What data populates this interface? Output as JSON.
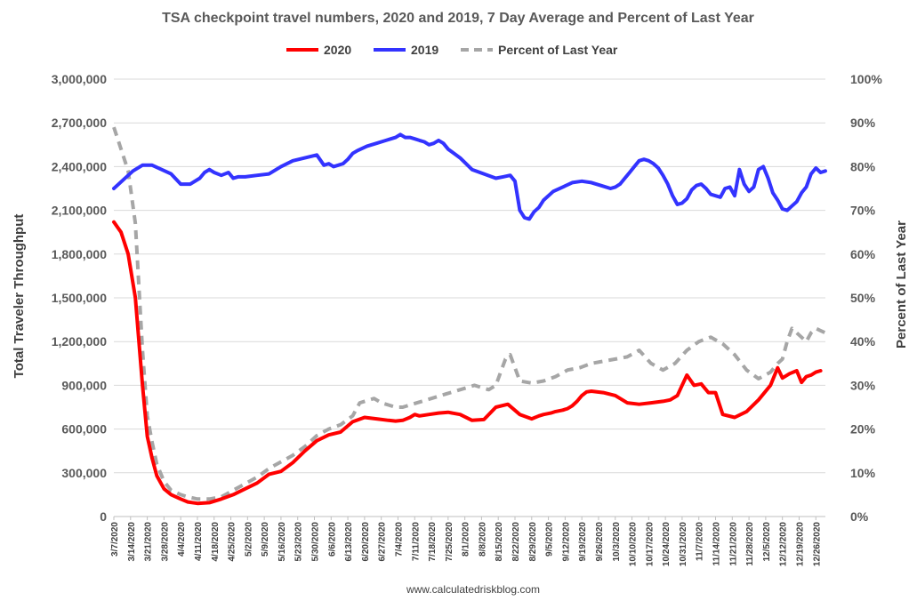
{
  "chart_data": {
    "type": "line",
    "title": "TSA checkpoint travel numbers, 2020 and 2019, 7 Day Average and Percent of Last Year",
    "ylabel": "Total Traveler Throughput",
    "y2label": "Percent of Last Year",
    "ylim": [
      0,
      3000000
    ],
    "y2lim": [
      0,
      100
    ],
    "yticks": [
      "0",
      "300,000",
      "600,000",
      "900,000",
      "1,200,000",
      "1,500,000",
      "1,800,000",
      "2,100,000",
      "2,400,000",
      "2,700,000",
      "3,000,000"
    ],
    "y2ticks": [
      "0%",
      "10%",
      "20%",
      "30%",
      "40%",
      "50%",
      "60%",
      "70%",
      "80%",
      "90%",
      "100%"
    ],
    "xticks": [
      "3/7/2020",
      "3/14/2020",
      "3/21/2020",
      "3/28/2020",
      "4/4/2020",
      "4/11/2020",
      "4/18/2020",
      "4/25/2020",
      "5/2/2020",
      "5/9/2020",
      "5/16/2020",
      "5/23/2020",
      "5/30/2020",
      "6/6/2020",
      "6/13/2020",
      "6/20/2020",
      "6/27/2020",
      "7/4/2020",
      "7/11/2020",
      "7/18/2020",
      "7/25/2020",
      "8/1/2020",
      "8/8/2020",
      "8/15/2020",
      "8/22/2020",
      "8/29/2020",
      "9/5/2020",
      "9/12/2020",
      "9/19/2020",
      "9/26/2020",
      "10/3/2020",
      "10/10/2020",
      "10/17/2020",
      "10/24/2020",
      "10/31/2020",
      "11/7/2020",
      "11/14/2020",
      "11/21/2020",
      "11/28/2020",
      "12/5/2020",
      "12/12/2020",
      "12/19/2020",
      "12/26/2020"
    ],
    "xlim": [
      0,
      298
    ],
    "grid": true,
    "legend_position": "top",
    "footer": "www.calculatedriskblog.com",
    "series": [
      {
        "name": "2020",
        "color": "#ff0000",
        "axis": "left",
        "x": [
          0,
          3,
          6,
          9,
          12,
          14,
          16,
          18,
          21,
          24,
          28,
          31,
          35,
          40,
          45,
          50,
          55,
          60,
          65,
          70,
          75,
          80,
          85,
          90,
          95,
          100,
          105,
          110,
          115,
          118,
          121,
          124,
          126,
          128,
          132,
          136,
          140,
          145,
          150,
          155,
          160,
          165,
          170,
          175,
          178,
          180,
          183,
          185,
          188,
          190,
          192,
          194,
          196,
          198,
          200,
          205,
          210,
          215,
          220,
          225,
          230,
          233,
          236,
          238,
          240,
          243,
          246,
          249,
          252,
          255,
          260,
          265,
          270,
          275,
          278,
          280,
          283,
          286,
          288,
          290,
          292,
          294,
          296
        ],
        "values": [
          2020000,
          1950000,
          1800000,
          1500000,
          900000,
          550000,
          400000,
          280000,
          190000,
          150000,
          120000,
          100000,
          90000,
          95000,
          120000,
          150000,
          190000,
          230000,
          290000,
          310000,
          370000,
          450000,
          520000,
          560000,
          580000,
          650000,
          680000,
          670000,
          660000,
          655000,
          660000,
          680000,
          700000,
          690000,
          700000,
          710000,
          715000,
          700000,
          660000,
          665000,
          750000,
          770000,
          700000,
          670000,
          690000,
          700000,
          710000,
          720000,
          730000,
          740000,
          760000,
          790000,
          830000,
          855000,
          860000,
          850000,
          830000,
          780000,
          770000,
          780000,
          790000,
          800000,
          830000,
          900000,
          970000,
          900000,
          910000,
          850000,
          850000,
          700000,
          680000,
          720000,
          800000,
          900000,
          1020000,
          950000,
          980000,
          1000000,
          920000,
          960000,
          970000,
          990000,
          1000000
        ]
      },
      {
        "name": "2019",
        "color": "#3333ff",
        "axis": "left",
        "x": [
          0,
          4,
          8,
          12,
          16,
          20,
          24,
          28,
          32,
          36,
          38,
          40,
          42,
          45,
          48,
          50,
          52,
          55,
          60,
          65,
          70,
          75,
          80,
          85,
          88,
          90,
          92,
          94,
          96,
          98,
          100,
          102,
          106,
          110,
          114,
          116,
          118,
          120,
          122,
          124,
          126,
          128,
          130,
          132,
          134,
          136,
          138,
          140,
          145,
          150,
          155,
          160,
          163,
          166,
          168,
          170,
          172,
          174,
          176,
          178,
          180,
          184,
          188,
          192,
          196,
          200,
          204,
          208,
          210,
          212,
          214,
          216,
          218,
          220,
          222,
          224,
          226,
          228,
          230,
          232,
          234,
          236,
          238,
          240,
          242,
          244,
          246,
          248,
          250,
          252,
          254,
          256,
          258,
          260,
          262,
          264,
          266,
          268,
          270,
          272,
          274,
          276,
          278,
          280,
          282,
          284,
          286,
          288,
          290,
          292,
          294,
          296,
          298
        ],
        "values": [
          2250000,
          2310000,
          2370000,
          2410000,
          2410000,
          2380000,
          2350000,
          2280000,
          2280000,
          2320000,
          2360000,
          2380000,
          2360000,
          2340000,
          2360000,
          2320000,
          2330000,
          2330000,
          2340000,
          2350000,
          2400000,
          2440000,
          2460000,
          2480000,
          2410000,
          2420000,
          2400000,
          2410000,
          2420000,
          2450000,
          2490000,
          2510000,
          2540000,
          2560000,
          2580000,
          2590000,
          2600000,
          2620000,
          2600000,
          2600000,
          2590000,
          2580000,
          2570000,
          2550000,
          2560000,
          2580000,
          2560000,
          2520000,
          2460000,
          2380000,
          2350000,
          2320000,
          2330000,
          2340000,
          2300000,
          2100000,
          2050000,
          2040000,
          2090000,
          2120000,
          2170000,
          2230000,
          2260000,
          2290000,
          2300000,
          2290000,
          2270000,
          2250000,
          2260000,
          2280000,
          2320000,
          2360000,
          2400000,
          2440000,
          2450000,
          2440000,
          2420000,
          2390000,
          2340000,
          2280000,
          2200000,
          2140000,
          2150000,
          2180000,
          2240000,
          2270000,
          2280000,
          2250000,
          2210000,
          2200000,
          2190000,
          2250000,
          2260000,
          2200000,
          2380000,
          2280000,
          2230000,
          2260000,
          2380000,
          2400000,
          2320000,
          2220000,
          2170000,
          2110000,
          2100000,
          2130000,
          2160000,
          2220000,
          2260000,
          2350000,
          2390000,
          2360000,
          2370000
        ]
      },
      {
        "name": "Percent of Last Year",
        "color": "#a6a6a6",
        "axis": "right",
        "dashed": true,
        "x": [
          0,
          3,
          6,
          9,
          12,
          14,
          16,
          18,
          21,
          24,
          28,
          31,
          35,
          40,
          45,
          50,
          55,
          60,
          65,
          70,
          75,
          80,
          85,
          90,
          95,
          100,
          103,
          106,
          109,
          112,
          115,
          118,
          121,
          124,
          127,
          130,
          133,
          136,
          139,
          142,
          145,
          148,
          151,
          154,
          157,
          160,
          162,
          164,
          166,
          168,
          170,
          175,
          180,
          185,
          190,
          195,
          200,
          205,
          210,
          215,
          220,
          225,
          230,
          235,
          240,
          245,
          250,
          255,
          260,
          265,
          270,
          275,
          278,
          280,
          282,
          284,
          286,
          288,
          290,
          292,
          294,
          296,
          298
        ],
        "values": [
          89,
          84,
          79,
          67,
          38,
          23,
          17,
          12,
          8,
          6,
          5,
          4.5,
          4,
          4,
          4.5,
          6,
          7.5,
          9,
          11,
          12.5,
          14,
          16,
          18.5,
          20,
          21,
          23,
          26,
          26.5,
          27,
          26,
          25.5,
          25,
          25,
          25.5,
          26,
          26.5,
          27,
          27.5,
          28,
          28.5,
          29,
          29.5,
          30,
          29.5,
          29,
          30,
          33,
          36,
          37,
          34,
          31,
          30.5,
          31,
          32,
          33.5,
          34,
          35,
          35.5,
          36,
          36.5,
          38,
          35,
          33.5,
          35,
          38,
          40,
          41,
          39.5,
          37,
          33.5,
          31.5,
          33,
          35,
          36,
          40,
          43,
          42,
          41,
          40,
          42,
          43,
          42.5,
          42
        ]
      }
    ]
  }
}
